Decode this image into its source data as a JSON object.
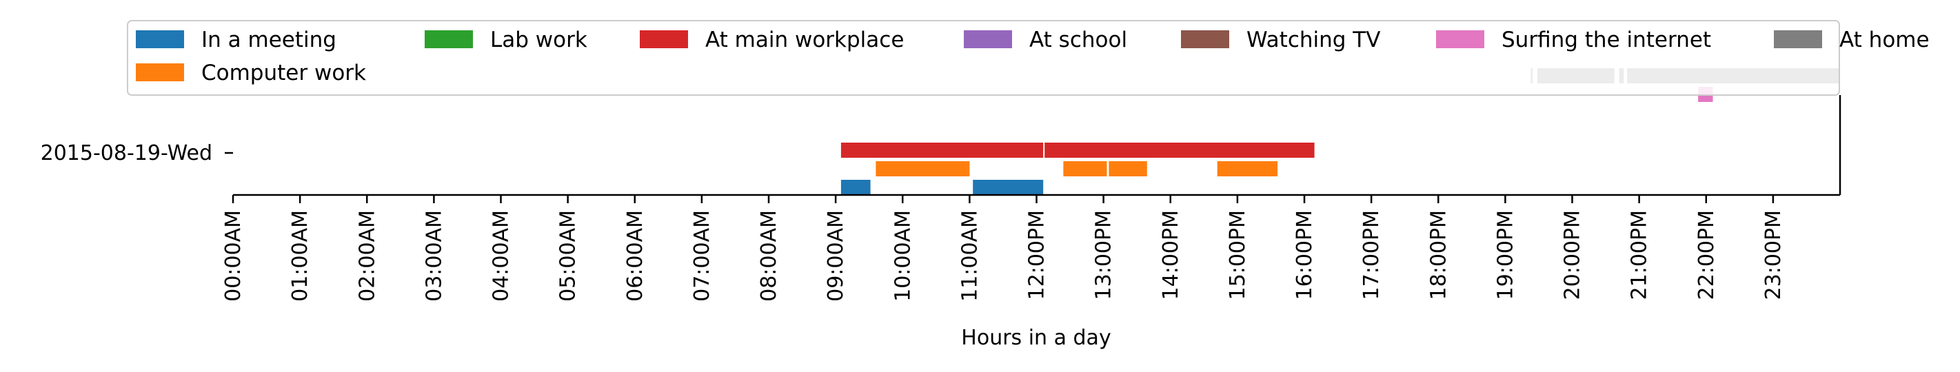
{
  "chart_data": {
    "type": "timeline",
    "title": "",
    "xlabel": "Hours in a day",
    "ylabel": "",
    "xlim": [
      0,
      24
    ],
    "x_ticks": [
      "00:00AM",
      "01:00AM",
      "02:00AM",
      "03:00AM",
      "04:00AM",
      "05:00AM",
      "06:00AM",
      "07:00AM",
      "08:00AM",
      "09:00AM",
      "10:00AM",
      "11:00AM",
      "12:00PM",
      "13:00PM",
      "14:00PM",
      "15:00PM",
      "16:00PM",
      "17:00PM",
      "18:00PM",
      "19:00PM",
      "20:00PM",
      "21:00PM",
      "22:00PM",
      "23:00PM"
    ],
    "y_categories": [
      "2015-08-19-Wed"
    ],
    "grid": false,
    "legend_placement": "top",
    "series": [
      {
        "name": "In a meeting",
        "color": "#1f77b4",
        "lane": 0,
        "intervals": [
          [
            9.08,
            9.52
          ],
          [
            11.05,
            12.1
          ]
        ]
      },
      {
        "name": "Lab work",
        "color": "#2ca02c",
        "lane": 1,
        "intervals": []
      },
      {
        "name": "At main workplace",
        "color": "#d62728",
        "lane": 2,
        "intervals": [
          [
            9.08,
            12.1
          ],
          [
            12.12,
            16.15
          ]
        ]
      },
      {
        "name": "At school",
        "color": "#9467bd",
        "lane": 3,
        "intervals": []
      },
      {
        "name": "Watching TV",
        "color": "#8c564b",
        "lane": 4,
        "intervals": []
      },
      {
        "name": "Surfing the internet",
        "color": "#e377c2",
        "lane": 5,
        "intervals": [
          [
            21.88,
            22.1
          ]
        ]
      },
      {
        "name": "At home",
        "color": "#7f7f7f",
        "lane": 6,
        "intervals": [
          [
            19.38,
            19.41
          ],
          [
            19.48,
            20.63
          ],
          [
            20.7,
            20.77
          ],
          [
            20.82,
            24.0
          ]
        ]
      },
      {
        "name": "Computer work",
        "color": "#ff7f0e",
        "lane": 1,
        "intervals": [
          [
            9.6,
            11.0
          ],
          [
            12.4,
            13.05
          ],
          [
            13.08,
            13.65
          ],
          [
            14.7,
            15.6
          ]
        ]
      }
    ]
  }
}
